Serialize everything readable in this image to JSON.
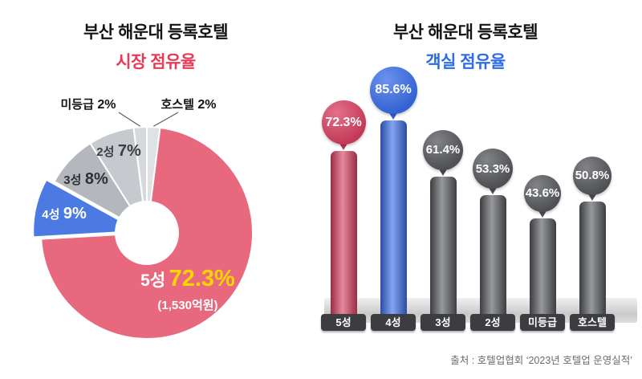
{
  "left_chart": {
    "title_line1": "부산 해운대 등록호텔",
    "title_line2": "시장 점유율",
    "labels": {
      "grade5_name": "5성",
      "grade5_value": "72.3%",
      "grade5_note": "(1,530억원)",
      "grade4_name": "4성",
      "grade4_value": "9%",
      "grade3_name": "3성",
      "grade3_value": "8%",
      "grade2_name": "2성",
      "grade2_value": "7%",
      "unrated_name": "미등급",
      "unrated_value": "2%",
      "hostel_name": "호스텔",
      "hostel_value": "2%"
    }
  },
  "right_chart": {
    "title_line1": "부산 해운대 등록호텔",
    "title_line2": "객실 점유율"
  },
  "source": "출처 : 호텔업협회 ‘2023년 호텔업 운영실적’",
  "colors": {
    "title_red": "#e63b54",
    "title_blue": "#2e6be6",
    "highlight_yellow": "#ffd400",
    "callout_line": "#5a5e63"
  },
  "chart_data": [
    {
      "type": "pie",
      "title": "부산 해운대 등록호텔 시장 점유율",
      "labels": [
        "호스텔",
        "5성",
        "4성",
        "3성",
        "2성",
        "미등급"
      ],
      "values": [
        2,
        72.3,
        9,
        8,
        7,
        2
      ],
      "colors": [
        "#dfe1e3",
        "#e8697e",
        "#4a7ae2",
        "#b4b8bd",
        "#c6c9cd",
        "#d6d8db"
      ],
      "donut": true,
      "annotation": "5성 72.3% (1,530억원)"
    },
    {
      "type": "bar",
      "title": "부산 해운대 등록호텔 객실 점유율",
      "categories": [
        "5성",
        "4성",
        "3성",
        "2성",
        "미등급",
        "호스텔"
      ],
      "values": [
        72.3,
        85.6,
        61.4,
        53.3,
        43.6,
        50.8
      ],
      "colors": [
        "#d94062",
        "#3a6ee8",
        "#57595d",
        "#57595d",
        "#57595d",
        "#57595d"
      ],
      "ylim": [
        0,
        100
      ],
      "value_suffix": "%"
    }
  ]
}
